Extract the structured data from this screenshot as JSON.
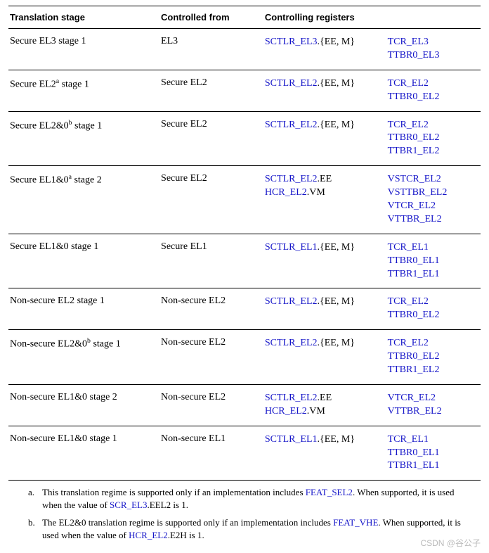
{
  "colors": {
    "link": "#1414c8",
    "text": "#000000",
    "border": "#000000",
    "bg": "#ffffff"
  },
  "typography": {
    "body_family": "Times New Roman",
    "body_size_pt": 11,
    "header_family": "Arial",
    "header_size_pt": 10
  },
  "headers": {
    "stage": "Translation stage",
    "from": "Controlled from",
    "regs": "Controlling registers"
  },
  "rows": [
    {
      "stage_pre": "Secure EL3 stage 1",
      "sup": "",
      "stage_post": "",
      "from": "EL3",
      "r1": [
        {
          "link": "SCTLR_EL3",
          "tail": ".{EE, M}"
        }
      ],
      "r2": [
        {
          "link": "TCR_EL3",
          "tail": ""
        },
        {
          "link": "TTBR0_EL3",
          "tail": ""
        }
      ]
    },
    {
      "stage_pre": "Secure EL2",
      "sup": "a",
      "stage_post": " stage 1",
      "from": "Secure EL2",
      "r1": [
        {
          "link": "SCTLR_EL2",
          "tail": ".{EE, M}"
        }
      ],
      "r2": [
        {
          "link": "TCR_EL2",
          "tail": ""
        },
        {
          "link": "TTBR0_EL2",
          "tail": ""
        }
      ]
    },
    {
      "stage_pre": "Secure EL2&0",
      "sup": "b",
      "stage_post": " stage 1",
      "from": "Secure EL2",
      "r1": [
        {
          "link": "SCTLR_EL2",
          "tail": ".{EE, M}"
        }
      ],
      "r2": [
        {
          "link": "TCR_EL2",
          "tail": ""
        },
        {
          "link": "TTBR0_EL2",
          "tail": ""
        },
        {
          "link": "TTBR1_EL2",
          "tail": ""
        }
      ]
    },
    {
      "stage_pre": "Secure EL1&0",
      "sup": "a",
      "stage_post": " stage 2",
      "from": "Secure EL2",
      "r1": [
        {
          "link": "SCTLR_EL2",
          "tail": ".EE"
        },
        {
          "link": "HCR_EL2",
          "tail": ".VM"
        }
      ],
      "r2": [
        {
          "link": "VSTCR_EL2",
          "tail": ""
        },
        {
          "link": "VSTTBR_EL2",
          "tail": ""
        },
        {
          "link": "VTCR_EL2",
          "tail": ""
        },
        {
          "link": "VTTBR_EL2",
          "tail": ""
        }
      ]
    },
    {
      "stage_pre": "Secure EL1&0 stage 1",
      "sup": "",
      "stage_post": "",
      "from": "Secure EL1",
      "r1": [
        {
          "link": "SCTLR_EL1",
          "tail": ".{EE, M}"
        }
      ],
      "r2": [
        {
          "link": "TCR_EL1",
          "tail": ""
        },
        {
          "link": "TTBR0_EL1",
          "tail": ""
        },
        {
          "link": "TTBR1_EL1",
          "tail": ""
        }
      ]
    },
    {
      "stage_pre": "Non-secure EL2 stage 1",
      "sup": "",
      "stage_post": "",
      "from": "Non-secure EL2",
      "r1": [
        {
          "link": "SCTLR_EL2",
          "tail": ".{EE, M}"
        }
      ],
      "r2": [
        {
          "link": "TCR_EL2",
          "tail": ""
        },
        {
          "link": "TTBR0_EL2",
          "tail": ""
        }
      ]
    },
    {
      "stage_pre": "Non-secure EL2&0",
      "sup": "b",
      "stage_post": " stage 1",
      "from": "Non-secure EL2",
      "r1": [
        {
          "link": "SCTLR_EL2",
          "tail": ".{EE, M}"
        }
      ],
      "r2": [
        {
          "link": "TCR_EL2",
          "tail": ""
        },
        {
          "link": "TTBR0_EL2",
          "tail": ""
        },
        {
          "link": "TTBR1_EL2",
          "tail": ""
        }
      ]
    },
    {
      "stage_pre": "Non-secure EL1&0 stage 2",
      "sup": "",
      "stage_post": "",
      "from": "Non-secure EL2",
      "r1": [
        {
          "link": "SCTLR_EL2",
          "tail": ".EE"
        },
        {
          "link": "HCR_EL2",
          "tail": ".VM"
        }
      ],
      "r2": [
        {
          "link": "VTCR_EL2",
          "tail": ""
        },
        {
          "link": "VTTBR_EL2",
          "tail": ""
        }
      ]
    },
    {
      "stage_pre": "Non-secure EL1&0 stage 1",
      "sup": "",
      "stage_post": "",
      "from": "Non-secure EL1",
      "r1": [
        {
          "link": "SCTLR_EL1",
          "tail": ".{EE, M}"
        }
      ],
      "r2": [
        {
          "link": "TCR_EL1",
          "tail": ""
        },
        {
          "link": "TTBR0_EL1",
          "tail": ""
        },
        {
          "link": "TTBR1_EL1",
          "tail": ""
        }
      ]
    }
  ],
  "footnotes": {
    "a": {
      "marker": "a.",
      "t1": "This translation regime is supported only if an implementation includes ",
      "l1": "FEAT_SEL2",
      "t2": ". When supported, it is used when the value of ",
      "l2": "SCR_EL3",
      "t3": ".EEL2 is 1."
    },
    "b": {
      "marker": "b.",
      "t1": "The EL2&0 translation regime is supported only if an implementation includes ",
      "l1": "FEAT_VHE",
      "t2": ". When supported, it is used when the value of ",
      "l2": "HCR_EL2",
      "t3": ".E2H is 1."
    }
  },
  "watermark": "CSDN @谷公子"
}
